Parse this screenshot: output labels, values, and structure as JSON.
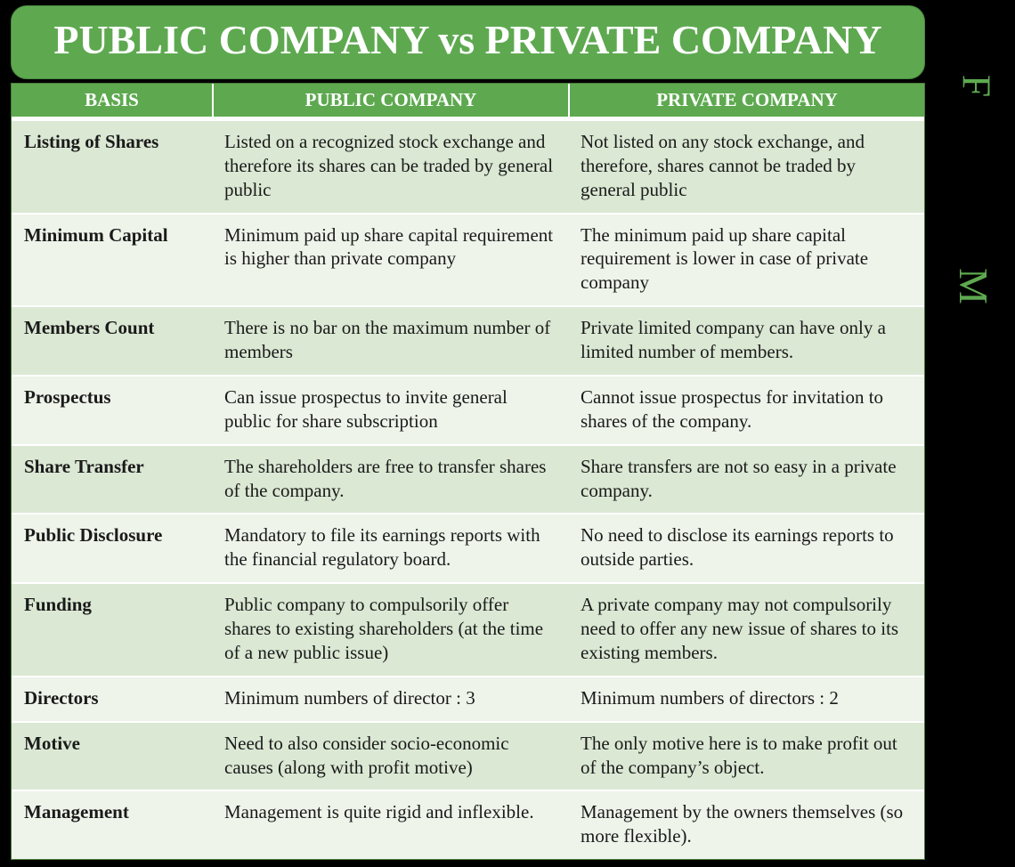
{
  "title": "PUBLIC COMPANY vs PRIVATE COMPANY",
  "colors": {
    "banner_bg": "#5ea950",
    "banner_text": "#ffffff",
    "header_bg": "#5ea950",
    "header_text": "#ffffff",
    "row_odd_bg": "#dbe8d4",
    "row_even_bg": "#eef4ea",
    "body_text": "#1a1a1a",
    "page_bg": "#000000",
    "side_letter_color": "#5ea950"
  },
  "side_letters": {
    "top": "F",
    "middle": "M"
  },
  "columns": [
    "BASIS",
    "PUBLIC COMPANY",
    "PRIVATE COMPANY"
  ],
  "rows": [
    {
      "basis": "Listing of Shares",
      "public": "Listed on a recognized stock exchange and therefore its shares can be traded by general public",
      "private": "Not listed on any stock exchange, and therefore, shares cannot be traded by general public"
    },
    {
      "basis": "Minimum Capital",
      "public": "Minimum paid up share capital requirement is higher than private company",
      "private": "The minimum paid up share capital requirement is lower in case of private company"
    },
    {
      "basis": "Members Count",
      "public": "There is no bar on the maximum number of members",
      "private": "Private limited company can have only a limited number of members."
    },
    {
      "basis": "Prospectus",
      "public": "Can issue prospectus to invite general public for share subscription",
      "private": "Cannot issue prospectus for invitation to shares of the company."
    },
    {
      "basis": "Share Transfer",
      "public": "The shareholders are free to transfer shares of the company.",
      "private": "Share transfers are not so easy in a private company."
    },
    {
      "basis": "Public Disclosure",
      "public": "Mandatory to file its earnings reports with the financial regulatory board.",
      "private": "No need to disclose its earnings reports to outside parties."
    },
    {
      "basis": "Funding",
      "public": "Public company to compulsorily offer shares to existing shareholders (at the time of a new public issue)",
      "private": "A private company may not compulsorily need to offer any new issue of shares to its existing members."
    },
    {
      "basis": "Directors",
      "public": "Minimum numbers of director : 3",
      "private": "Minimum numbers of directors : 2"
    },
    {
      "basis": "Motive",
      "public": "Need to also consider socio-economic causes (along with profit motive)",
      "private": "The only motive here is to make profit out of the company’s object."
    },
    {
      "basis": "Management",
      "public": "Management is quite rigid and inflexible.",
      "private": "Management by the owners themselves (so more flexible)."
    }
  ]
}
